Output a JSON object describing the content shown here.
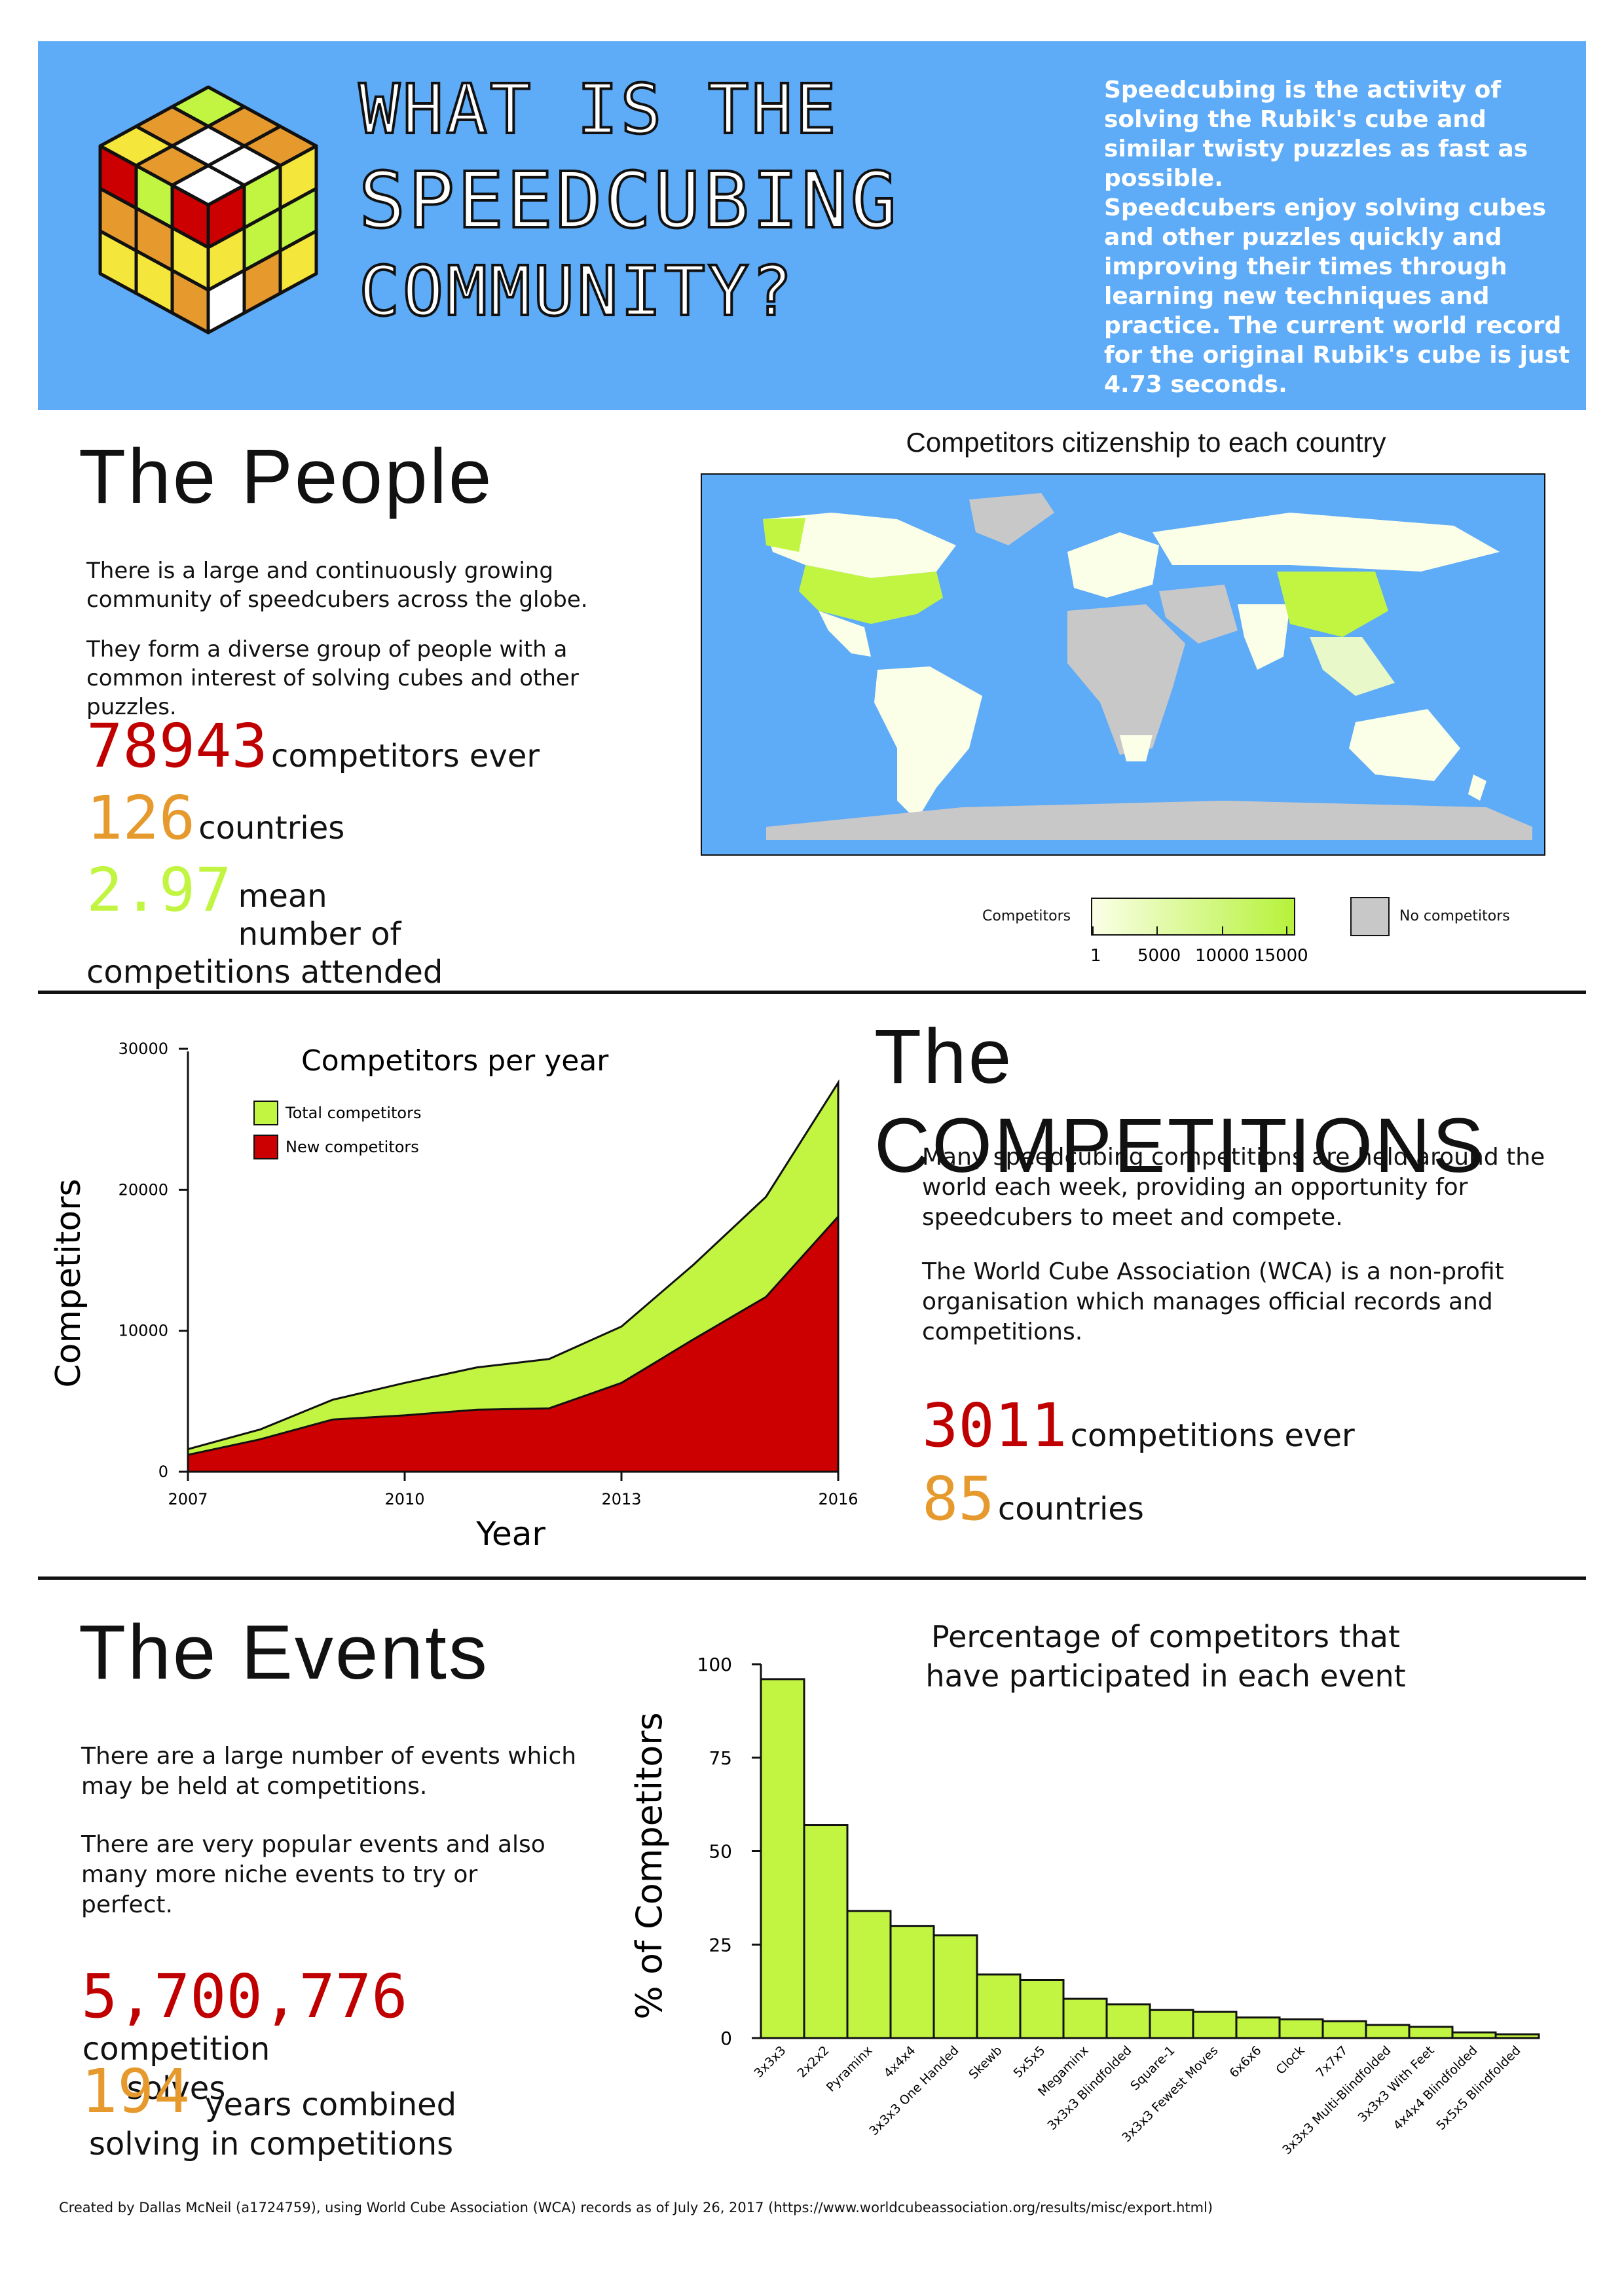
{
  "header": {
    "title_lines": [
      "WHAT IS THE",
      "SPEEDCUBING",
      "COMMUNITY?"
    ],
    "intro_1": "Speedcubing is the activity of solving the Rubik's cube and similar twisty puzzles as fast as possible.",
    "intro_2": "Speedcubers enjoy solving cubes and other puzzles quickly and improving their times through learning new techniques and practice. The current world record for the original Rubik's cube is just 4.73 seconds."
  },
  "people": {
    "heading": "The People",
    "text_1": "There is a large and continuously growing community of speedcubers across the globe.",
    "text_2": "They form a diverse group of people with a common interest of solving cubes and other puzzles.",
    "stats": [
      {
        "value": "78943",
        "label": "competitors ever",
        "color": "#c00000"
      },
      {
        "value": "126",
        "label": "countries",
        "color": "#e69a2e"
      },
      {
        "value": "2.97",
        "label": "mean number of competitions attended",
        "color": "#c2f542"
      }
    ]
  },
  "map": {
    "title": "Competitors citizenship to each country",
    "legend_label": "Competitors",
    "legend_ticks": [
      "1",
      "5000",
      "10000",
      "15000"
    ],
    "no_data_label": "No competitors",
    "colors": {
      "ocean": "#5eabf7",
      "none": "#c8c8c8",
      "low": "#fbffe8",
      "high": "#b6f23a"
    }
  },
  "competitions": {
    "heading": "The COMPETITIONS",
    "text_1": "Many speedcubing competitions are held around the world each week, providing an opportunity for speedcubers to meet and compete.",
    "text_2": "The World Cube Association (WCA) is a non-profit organisation which manages official records and competitions.",
    "stats": [
      {
        "value": "3011",
        "label": "competitions ever",
        "color": "#c00000"
      },
      {
        "value": "85",
        "label": "countries",
        "color": "#e69a2e"
      }
    ]
  },
  "events": {
    "heading": "The Events",
    "text_1": "There are a large number of events which may be held at competitions.",
    "text_2": "There are very popular events and also many more niche events to try or perfect.",
    "stats": [
      {
        "value": "5,700,776",
        "label": "competition solves",
        "color": "#c00000"
      },
      {
        "value": "194",
        "label": "years combined solving in competitions",
        "color": "#e69a2e"
      }
    ]
  },
  "footer": "Created by Dallas McNeil (a1724759), using World Cube Association (WCA) records as of July 26, 2017 (https://www.worldcubeassociation.org/results/misc/export.html)",
  "chart_data": [
    {
      "type": "area",
      "title": "Competitors per year",
      "xlabel": "Year",
      "ylabel": "Competitors",
      "xlim": [
        2007,
        2016
      ],
      "ylim": [
        0,
        30000
      ],
      "xticks": [
        "2007",
        "2010",
        "2013",
        "2016"
      ],
      "yticks": [
        "0",
        "10000",
        "20000",
        "30000"
      ],
      "x": [
        2007,
        2008,
        2009,
        2010,
        2011,
        2012,
        2013,
        2014,
        2015,
        2016
      ],
      "series": [
        {
          "name": "Total competitors",
          "color": "#c2f542",
          "values": [
            1600,
            3000,
            5100,
            6300,
            7400,
            8000,
            10300,
            14700,
            19500,
            27600
          ]
        },
        {
          "name": "New competitors",
          "color": "#cc0000",
          "values": [
            1200,
            2300,
            3700,
            4000,
            4400,
            4500,
            6300,
            9400,
            12400,
            18100
          ]
        }
      ],
      "legend": "top-left"
    },
    {
      "type": "bar",
      "title": "Percentage of competitors that have participated in each event",
      "ylabel": "% of Competitors",
      "ylim": [
        0,
        100
      ],
      "yticks": [
        "0",
        "25",
        "50",
        "75",
        "100"
      ],
      "color": "#c2f542",
      "categories": [
        "3x3x3",
        "2x2x2",
        "Pyraminx",
        "4x4x4",
        "3x3x3 One Handed",
        "Skewb",
        "5x5x5",
        "Megaminx",
        "3x3x3 Blindfolded",
        "Square-1",
        "3x3x3 Fewest Moves",
        "6x6x6",
        "Clock",
        "7x7x7",
        "3x3x3 Multi-Blindfolded",
        "3x3x3 With Feet",
        "4x4x4 Blindfolded",
        "5x5x5 Blindfolded"
      ],
      "values": [
        96,
        57,
        34,
        30,
        27.5,
        17,
        15.5,
        10.5,
        9,
        7.5,
        7,
        5.5,
        5,
        4.5,
        3.5,
        3,
        1.5,
        1
      ]
    }
  ]
}
